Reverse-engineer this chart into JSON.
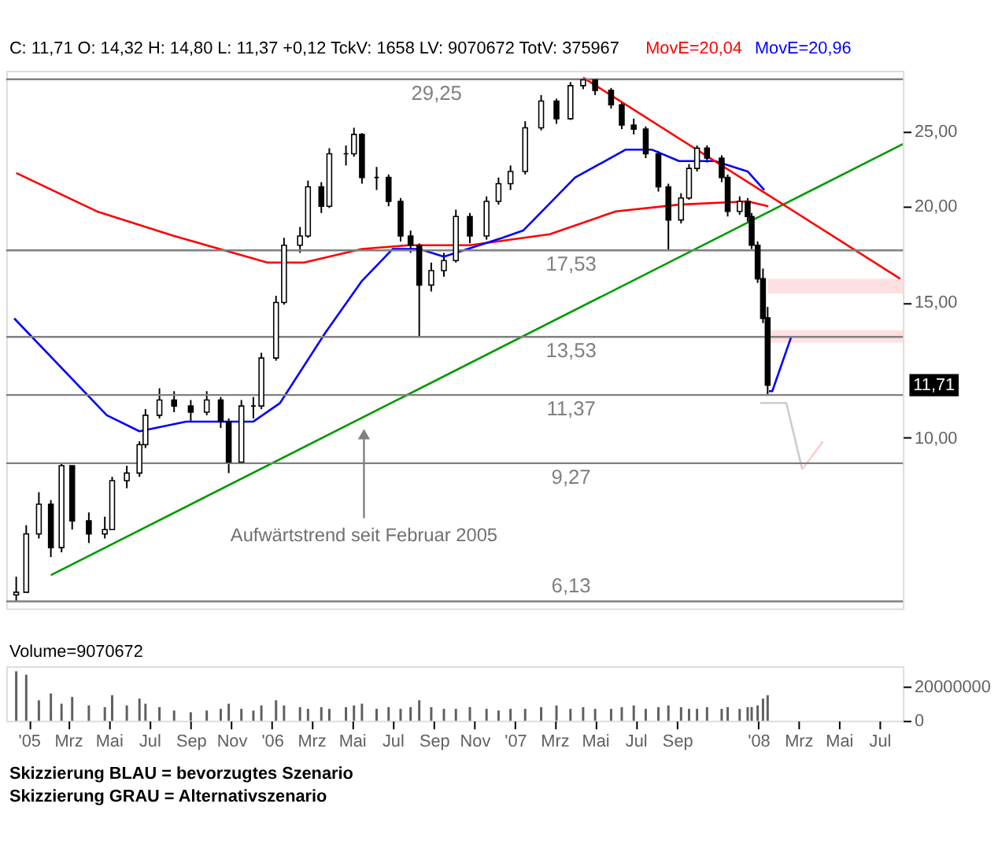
{
  "chart_data": [
    {
      "type": "candlestick",
      "title": "C: 11,71 O: 14,32 H: 14,80 L: 11,37 +0,12 TckV: 1658 LV: 9070672 TotV: 375967",
      "color": "#000000",
      "x": [
        "2004-12-13",
        "2004-12-28",
        "2005-01-16",
        "2005-02-03",
        "2005-02-19",
        "2005-03-07",
        "2005-04-01",
        "2005-04-25",
        "2005-05-06",
        "2005-05-28",
        "2005-06-16",
        "2005-06-25",
        "2005-07-16",
        "2005-08-07",
        "2005-09-01",
        "2005-09-25",
        "2005-10-16",
        "2005-10-28",
        "2005-11-16",
        "2005-12-04",
        "2005-12-16",
        "2006-01-07",
        "2006-01-19",
        "2006-02-12",
        "2006-02-24",
        "2006-03-16",
        "2006-03-28",
        "2006-04-22",
        "2006-05-04",
        "2006-05-16",
        "2006-06-07",
        "2006-06-25",
        "2006-07-13",
        "2006-07-28",
        "2006-08-10",
        "2006-08-28",
        "2006-09-16",
        "2006-10-04",
        "2006-10-25",
        "2006-11-19",
        "2006-12-07",
        "2006-12-25",
        "2007-01-16",
        "2007-02-09",
        "2007-03-04",
        "2007-03-25",
        "2007-04-13",
        "2007-05-01",
        "2007-05-25",
        "2007-06-10",
        "2007-06-28",
        "2007-07-16",
        "2007-08-04",
        "2007-08-19",
        "2007-09-07",
        "2007-09-19",
        "2007-10-01",
        "2007-10-16",
        "2007-11-07",
        "2007-11-16",
        "2007-12-04",
        "2007-12-16",
        "2007-12-22",
        "2007-12-31",
        "2008-01-08",
        "2008-01-15"
      ],
      "ohlc": [
        [
          6.25,
          6.6,
          6.13,
          6.3
        ],
        [
          6.3,
          7.7,
          6.3,
          7.5
        ],
        [
          7.5,
          8.5,
          7.4,
          8.2
        ],
        [
          8.2,
          8.3,
          7.0,
          7.2
        ],
        [
          7.2,
          9.27,
          7.1,
          9.2
        ],
        [
          9.2,
          9.2,
          7.6,
          7.8
        ],
        [
          7.8,
          8.0,
          7.3,
          7.5
        ],
        [
          7.5,
          7.9,
          7.4,
          7.6
        ],
        [
          7.6,
          8.9,
          7.6,
          8.8
        ],
        [
          8.8,
          9.2,
          8.6,
          9.0
        ],
        [
          9.0,
          9.9,
          8.9,
          9.8
        ],
        [
          9.8,
          10.9,
          9.7,
          10.7
        ],
        [
          10.7,
          11.6,
          10.6,
          11.2
        ],
        [
          11.2,
          11.5,
          10.8,
          11.0
        ],
        [
          11.0,
          11.2,
          10.5,
          10.8
        ],
        [
          10.8,
          11.5,
          10.7,
          11.2
        ],
        [
          11.2,
          11.3,
          10.3,
          10.5
        ],
        [
          10.5,
          10.6,
          9.0,
          9.3
        ],
        [
          9.3,
          11.2,
          9.3,
          11.0
        ],
        [
          11.0,
          11.3,
          10.6,
          11.0
        ],
        [
          11.0,
          12.9,
          10.9,
          12.7
        ],
        [
          12.7,
          15.3,
          12.6,
          15.0
        ],
        [
          15.0,
          18.2,
          14.9,
          17.8
        ],
        [
          17.8,
          18.8,
          17.4,
          18.3
        ],
        [
          18.3,
          21.6,
          18.2,
          21.2
        ],
        [
          21.2,
          21.5,
          19.6,
          20.0
        ],
        [
          20.0,
          23.8,
          19.9,
          23.4
        ],
        [
          23.4,
          24.0,
          22.6,
          23.4
        ],
        [
          23.4,
          25.3,
          23.2,
          24.8
        ],
        [
          24.8,
          24.9,
          21.4,
          21.8
        ],
        [
          21.8,
          22.5,
          21.0,
          21.8
        ],
        [
          21.8,
          22.0,
          20.0,
          20.3
        ],
        [
          20.3,
          20.5,
          18.0,
          18.3
        ],
        [
          18.3,
          18.6,
          17.4,
          17.8
        ],
        [
          17.8,
          17.9,
          13.53,
          15.8
        ],
        [
          15.8,
          16.9,
          15.5,
          16.5
        ],
        [
          16.5,
          17.4,
          16.2,
          17.0
        ],
        [
          17.0,
          19.8,
          16.9,
          19.4
        ],
        [
          19.4,
          19.6,
          17.9,
          18.3
        ],
        [
          18.3,
          20.6,
          18.1,
          20.3
        ],
        [
          20.3,
          21.8,
          20.1,
          21.4
        ],
        [
          21.4,
          22.6,
          21.0,
          22.2
        ],
        [
          22.2,
          25.8,
          22.0,
          25.3
        ],
        [
          25.3,
          27.9,
          25.1,
          27.4
        ],
        [
          27.4,
          27.6,
          25.6,
          26.0
        ],
        [
          26.0,
          29.0,
          25.9,
          28.7
        ],
        [
          28.7,
          29.25,
          28.4,
          29.2
        ],
        [
          29.2,
          29.2,
          27.9,
          28.3
        ],
        [
          28.3,
          28.5,
          26.8,
          27.1
        ],
        [
          27.1,
          27.3,
          25.2,
          25.5
        ],
        [
          25.5,
          26.0,
          24.8,
          25.2
        ],
        [
          25.2,
          25.4,
          23.1,
          23.4
        ],
        [
          23.4,
          23.6,
          20.9,
          21.2
        ],
        [
          21.2,
          21.4,
          17.53,
          19.2
        ],
        [
          19.2,
          20.8,
          19.0,
          20.5
        ],
        [
          20.5,
          22.7,
          20.4,
          22.4
        ],
        [
          22.4,
          24.0,
          22.2,
          23.8
        ],
        [
          23.8,
          24.0,
          22.8,
          23.1
        ],
        [
          23.1,
          23.3,
          21.5,
          21.8
        ],
        [
          21.8,
          22.0,
          19.4,
          19.7
        ],
        [
          19.7,
          20.6,
          19.5,
          20.3
        ],
        [
          20.3,
          20.5,
          19.1,
          19.4
        ],
        [
          19.4,
          19.6,
          17.6,
          17.8
        ],
        [
          17.8,
          18.0,
          15.9,
          16.1
        ],
        [
          16.1,
          16.6,
          14.1,
          14.3
        ],
        [
          14.32,
          14.8,
          11.37,
          11.71
        ]
      ],
      "series": [
        {
          "name": "MovE=20,04",
          "type": "line",
          "color": "#ff0000",
          "x": [
            "2004-12-13",
            "2005-04-13",
            "2005-08-07",
            "2005-12-25",
            "2006-02-18",
            "2006-05-16",
            "2006-07-25",
            "2006-10-25",
            "2007-02-22",
            "2007-06-01",
            "2007-09-04",
            "2007-12-16",
            "2008-01-16"
          ],
          "values": [
            22.1,
            19.7,
            18.3,
            16.9,
            16.9,
            17.6,
            17.8,
            17.8,
            18.4,
            19.7,
            20.1,
            20.3,
            20.0
          ]
        },
        {
          "name": "MovE=20,96",
          "type": "line",
          "color": "#0000ff",
          "x": [
            "2004-12-10",
            "2005-04-28",
            "2005-06-16",
            "2005-08-25",
            "2005-12-04",
            "2006-01-13",
            "2006-03-22",
            "2006-05-16",
            "2006-07-01",
            "2006-08-10",
            "2006-09-16",
            "2006-12-13",
            "2007-01-13",
            "2007-04-01",
            "2007-06-16",
            "2007-07-25",
            "2007-09-04",
            "2007-10-28",
            "2007-12-16",
            "2008-01-10"
          ],
          "values": [
            14.3,
            10.7,
            10.2,
            10.5,
            10.5,
            11.1,
            13.7,
            16.0,
            17.6,
            17.6,
            17.2,
            18.2,
            18.6,
            21.8,
            23.7,
            23.7,
            22.9,
            22.9,
            22.2,
            21.0
          ]
        },
        {
          "type": "line",
          "color": "#009900",
          "x": [
            "2005-02-03",
            "2008-08-05"
          ],
          "values": [
            6.63,
            24.1
          ]
        },
        {
          "type": "line",
          "color": "#ff0000",
          "x": [
            "2007-04-13",
            "2008-08-01"
          ],
          "values": [
            29.4,
            16.1
          ]
        },
        {
          "type": "line",
          "color": "#0000ff",
          "x": [
            "2008-01-17",
            "2008-01-22",
            "2008-02-19"
          ],
          "values": [
            11.5,
            11.5,
            13.5
          ]
        },
        {
          "type": "line",
          "color": "#cccccc",
          "x": [
            "2008-01-04",
            "2008-02-12",
            "2008-03-07"
          ],
          "values": [
            11.1,
            11.1,
            9.1
          ]
        },
        {
          "type": "line",
          "color": "#ffcccc",
          "x": [
            "2008-03-07",
            "2008-04-07"
          ],
          "values": [
            9.1,
            9.9
          ]
        }
      ],
      "log": true,
      "ylim": [
        6,
        30
      ],
      "yticks": [
        {
          "value": 10,
          "label": "10,00"
        },
        {
          "value": 15,
          "label": "15,00"
        },
        {
          "value": 20,
          "label": "20,00"
        },
        {
          "value": 25,
          "label": "25,00"
        }
      ],
      "xlim": [
        "2004-11-28",
        "2008-08-05"
      ],
      "tick_labels": "y",
      "legend": "top",
      "bands": [
        {
          "axis": "y",
          "from": 15.4,
          "to": 16.1,
          "color": "#ffe0e0"
        },
        {
          "axis": "y",
          "from": 13.3,
          "to": 13.8,
          "color": "#ffe0e0"
        }
      ],
      "ref_lines": [
        {
          "axis": "y",
          "value": 29.25,
          "label": "29,25",
          "color": "#808080"
        },
        {
          "axis": "y",
          "value": 17.53,
          "label": "17,53",
          "color": "#808080"
        },
        {
          "axis": "y",
          "value": 13.53,
          "label": "13,53",
          "color": "#808080"
        },
        {
          "axis": "y",
          "value": 11.37,
          "label": "11,37",
          "color": "#808080"
        },
        {
          "axis": "y",
          "value": 9.27,
          "label": "9,27",
          "color": "#808080"
        },
        {
          "axis": "y",
          "value": 6.13,
          "label": "6,13",
          "color": "#808080"
        }
      ],
      "annotations": [
        {
          "text": "Aufwärtstrend seit Februar 2005",
          "x": "2006-05-19",
          "y": 10.5
        },
        "11,71"
      ]
    },
    {
      "type": "bar",
      "title": "Volume=9070672",
      "color": "#606060",
      "x": [
        "2004-12-13",
        "2004-12-28",
        "2005-01-16",
        "2005-02-03",
        "2005-02-19",
        "2005-03-07",
        "2005-04-01",
        "2005-04-25",
        "2005-05-06",
        "2005-05-28",
        "2005-06-16",
        "2005-06-25",
        "2005-07-16",
        "2005-08-07",
        "2005-09-01",
        "2005-09-25",
        "2005-10-16",
        "2005-10-28",
        "2005-11-16",
        "2005-12-04",
        "2005-12-16",
        "2006-01-07",
        "2006-01-19",
        "2006-02-12",
        "2006-02-24",
        "2006-03-16",
        "2006-03-28",
        "2006-04-22",
        "2006-05-04",
        "2006-05-16",
        "2006-06-07",
        "2006-06-25",
        "2006-07-13",
        "2006-07-28",
        "2006-08-10",
        "2006-08-28",
        "2006-09-16",
        "2006-10-04",
        "2006-10-25",
        "2006-11-19",
        "2006-12-07",
        "2006-12-25",
        "2007-01-16",
        "2007-02-09",
        "2007-03-04",
        "2007-03-25",
        "2007-04-13",
        "2007-05-01",
        "2007-05-25",
        "2007-06-10",
        "2007-06-28",
        "2007-07-16",
        "2007-08-04",
        "2007-08-19",
        "2007-09-07",
        "2007-09-19",
        "2007-10-01",
        "2007-10-16",
        "2007-11-07",
        "2007-11-16",
        "2007-12-04",
        "2007-12-16",
        "2007-12-22",
        "2007-12-31",
        "2008-01-08",
        "2008-01-15"
      ],
      "values": [
        29000000,
        27000000,
        12000000,
        16000000,
        10000000,
        14000000,
        9000000,
        8000000,
        15000000,
        9000000,
        13000000,
        10000000,
        8000000,
        6000000,
        5000000,
        6000000,
        7000000,
        10000000,
        7000000,
        6000000,
        9000000,
        12000000,
        9000000,
        8000000,
        7000000,
        8000000,
        7000000,
        8000000,
        9000000,
        10000000,
        7000000,
        8000000,
        7000000,
        8000000,
        12000000,
        8000000,
        7000000,
        7000000,
        8000000,
        7000000,
        6000000,
        7000000,
        7000000,
        8000000,
        9000000,
        7000000,
        8000000,
        7000000,
        7000000,
        8000000,
        9000000,
        7000000,
        8000000,
        9000000,
        8000000,
        7000000,
        7000000,
        8000000,
        7000000,
        8000000,
        7000000,
        8000000,
        8000000,
        9000000,
        13000000,
        15000000
      ],
      "ylim": [
        0,
        32000000
      ],
      "yticks": [
        0,
        20000000
      ],
      "xlim": [
        "2004-11-28",
        "2008-08-05"
      ],
      "xticks": [
        {
          "value": "2005-01-01",
          "label": "'05"
        },
        {
          "value": "2005-03-01",
          "label": "Mrz"
        },
        {
          "value": "2005-05-01",
          "label": "Mai"
        },
        {
          "value": "2005-07-01",
          "label": "Jul"
        },
        {
          "value": "2005-09-01",
          "label": "Sep"
        },
        {
          "value": "2005-11-01",
          "label": "Nov"
        },
        {
          "value": "2006-01-01",
          "label": "'06"
        },
        {
          "value": "2006-03-01",
          "label": "Mrz"
        },
        {
          "value": "2006-05-01",
          "label": "Mai"
        },
        {
          "value": "2006-07-01",
          "label": "Jul"
        },
        {
          "value": "2006-09-01",
          "label": "Sep"
        },
        {
          "value": "2006-11-01",
          "label": "Nov"
        },
        {
          "value": "2007-01-01",
          "label": "'07"
        },
        {
          "value": "2007-03-01",
          "label": "Mrz"
        },
        {
          "value": "2007-05-01",
          "label": "Mai"
        },
        {
          "value": "2007-07-01",
          "label": "Jul"
        },
        {
          "value": "2007-09-01",
          "label": "Sep"
        },
        {
          "value": "2008-01-01",
          "label": "'08"
        },
        {
          "value": "2008-03-01",
          "label": "Mrz"
        },
        {
          "value": "2008-05-01",
          "label": "Mai"
        },
        {
          "value": "2008-07-01",
          "label": "Jul"
        }
      ],
      "annotations": [
        "Skizzierung BLAU = bevorzugtes Szenario",
        "Skizzierung GRAU = Alternativszenario"
      ]
    }
  ]
}
